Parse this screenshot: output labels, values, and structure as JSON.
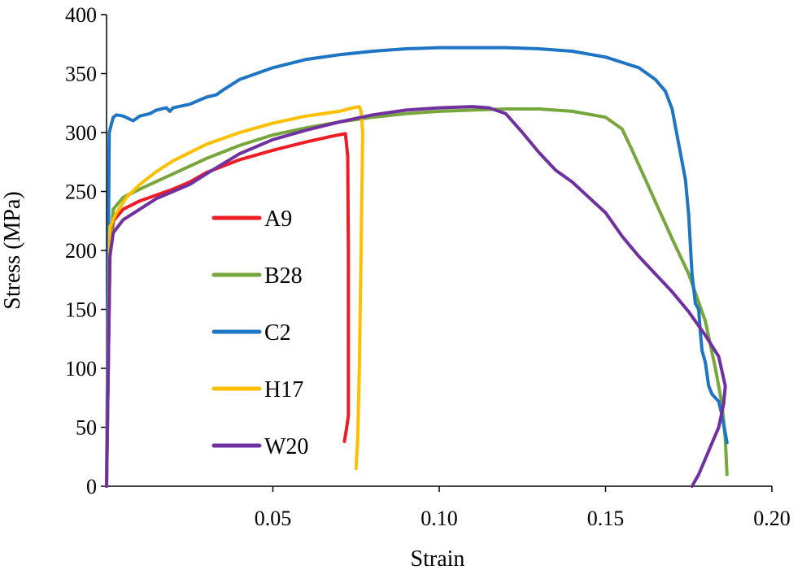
{
  "chart_data": {
    "type": "line",
    "title": "",
    "xlabel": "Strain",
    "ylabel": "Stress (MPa)",
    "xlim": [
      0,
      0.2
    ],
    "ylim": [
      0,
      400
    ],
    "xticks": [
      0.05,
      0.1,
      0.15,
      0.2
    ],
    "xtick_labels": [
      "0.05",
      "0.10",
      "0.15",
      "0.20"
    ],
    "yticks": [
      0,
      50,
      100,
      150,
      200,
      250,
      300,
      350,
      400
    ],
    "ytick_labels": [
      "0",
      "50",
      "100",
      "150",
      "200",
      "250",
      "300",
      "350",
      "400"
    ],
    "grid": false,
    "legend": "center-left",
    "series": [
      {
        "name": "A9",
        "color": "#ee1c25",
        "points": [
          [
            0,
            0
          ],
          [
            0.001,
            195
          ],
          [
            0.002,
            225
          ],
          [
            0.005,
            235
          ],
          [
            0.01,
            242
          ],
          [
            0.02,
            252
          ],
          [
            0.025,
            258
          ],
          [
            0.03,
            266
          ],
          [
            0.04,
            277
          ],
          [
            0.05,
            285
          ],
          [
            0.06,
            292
          ],
          [
            0.068,
            297
          ],
          [
            0.0718,
            299
          ],
          [
            0.0725,
            280
          ],
          [
            0.0727,
            200
          ],
          [
            0.0727,
            60
          ],
          [
            0.0722,
            50
          ],
          [
            0.0715,
            38
          ]
        ]
      },
      {
        "name": "B28",
        "color": "#77a63d",
        "points": [
          [
            0,
            0
          ],
          [
            0.001,
            200
          ],
          [
            0.002,
            235
          ],
          [
            0.005,
            245
          ],
          [
            0.01,
            252
          ],
          [
            0.02,
            265
          ],
          [
            0.03,
            278
          ],
          [
            0.04,
            289
          ],
          [
            0.05,
            298
          ],
          [
            0.06,
            304
          ],
          [
            0.07,
            309
          ],
          [
            0.08,
            313
          ],
          [
            0.09,
            316
          ],
          [
            0.1,
            318
          ],
          [
            0.11,
            319
          ],
          [
            0.12,
            320
          ],
          [
            0.13,
            320
          ],
          [
            0.14,
            318
          ],
          [
            0.15,
            313
          ],
          [
            0.155,
            303
          ],
          [
            0.158,
            285
          ],
          [
            0.162,
            260
          ],
          [
            0.166,
            235
          ],
          [
            0.17,
            210
          ],
          [
            0.175,
            180
          ],
          [
            0.18,
            140
          ],
          [
            0.183,
            100
          ],
          [
            0.185,
            70
          ],
          [
            0.186,
            40
          ],
          [
            0.1865,
            10
          ]
        ]
      },
      {
        "name": "C2",
        "color": "#1f75c4",
        "points": [
          [
            0,
            0
          ],
          [
            0.0008,
            300
          ],
          [
            0.002,
            313
          ],
          [
            0.003,
            315
          ],
          [
            0.005,
            314
          ],
          [
            0.008,
            310
          ],
          [
            0.01,
            314
          ],
          [
            0.013,
            316
          ],
          [
            0.015,
            319
          ],
          [
            0.018,
            321
          ],
          [
            0.019,
            318
          ],
          [
            0.02,
            321
          ],
          [
            0.025,
            324
          ],
          [
            0.03,
            330
          ],
          [
            0.033,
            332
          ],
          [
            0.035,
            336
          ],
          [
            0.04,
            345
          ],
          [
            0.05,
            355
          ],
          [
            0.06,
            362
          ],
          [
            0.07,
            366
          ],
          [
            0.08,
            369
          ],
          [
            0.09,
            371
          ],
          [
            0.1,
            372
          ],
          [
            0.11,
            372
          ],
          [
            0.12,
            372
          ],
          [
            0.13,
            371
          ],
          [
            0.14,
            369
          ],
          [
            0.15,
            364
          ],
          [
            0.16,
            355
          ],
          [
            0.165,
            345
          ],
          [
            0.168,
            335
          ],
          [
            0.17,
            320
          ],
          [
            0.172,
            290
          ],
          [
            0.174,
            260
          ],
          [
            0.175,
            230
          ],
          [
            0.176,
            180
          ],
          [
            0.177,
            155
          ],
          [
            0.178,
            150
          ],
          [
            0.1785,
            130
          ],
          [
            0.179,
            115
          ],
          [
            0.18,
            105
          ],
          [
            0.181,
            85
          ],
          [
            0.182,
            78
          ],
          [
            0.184,
            72
          ],
          [
            0.185,
            60
          ],
          [
            0.186,
            45
          ],
          [
            0.1865,
            37
          ]
        ]
      },
      {
        "name": "H17",
        "color": "#ffbf00",
        "points": [
          [
            0,
            0
          ],
          [
            0.001,
            220
          ],
          [
            0.003,
            232
          ],
          [
            0.006,
            245
          ],
          [
            0.01,
            256
          ],
          [
            0.015,
            267
          ],
          [
            0.02,
            276
          ],
          [
            0.025,
            283
          ],
          [
            0.03,
            290
          ],
          [
            0.04,
            300
          ],
          [
            0.05,
            308
          ],
          [
            0.06,
            314
          ],
          [
            0.07,
            318
          ],
          [
            0.074,
            321
          ],
          [
            0.076,
            322
          ],
          [
            0.0765,
            318
          ],
          [
            0.077,
            300
          ],
          [
            0.0765,
            200
          ],
          [
            0.076,
            100
          ],
          [
            0.0755,
            40
          ],
          [
            0.075,
            15
          ]
        ]
      },
      {
        "name": "W20",
        "color": "#7030a0",
        "points": [
          [
            0,
            0
          ],
          [
            0.001,
            195
          ],
          [
            0.002,
            215
          ],
          [
            0.005,
            226
          ],
          [
            0.01,
            235
          ],
          [
            0.015,
            244
          ],
          [
            0.02,
            250
          ],
          [
            0.025,
            256
          ],
          [
            0.03,
            265
          ],
          [
            0.04,
            282
          ],
          [
            0.05,
            294
          ],
          [
            0.06,
            302
          ],
          [
            0.07,
            309
          ],
          [
            0.08,
            315
          ],
          [
            0.09,
            319
          ],
          [
            0.1,
            321
          ],
          [
            0.11,
            322
          ],
          [
            0.115,
            321
          ],
          [
            0.12,
            316
          ],
          [
            0.125,
            300
          ],
          [
            0.13,
            283
          ],
          [
            0.135,
            268
          ],
          [
            0.14,
            258
          ],
          [
            0.145,
            245
          ],
          [
            0.15,
            232
          ],
          [
            0.155,
            212
          ],
          [
            0.16,
            195
          ],
          [
            0.165,
            180
          ],
          [
            0.17,
            165
          ],
          [
            0.175,
            148
          ],
          [
            0.18,
            128
          ],
          [
            0.184,
            110
          ],
          [
            0.186,
            85
          ],
          [
            0.1855,
            70
          ],
          [
            0.184,
            50
          ],
          [
            0.181,
            30
          ],
          [
            0.178,
            10
          ],
          [
            0.176,
            0
          ]
        ]
      }
    ]
  }
}
